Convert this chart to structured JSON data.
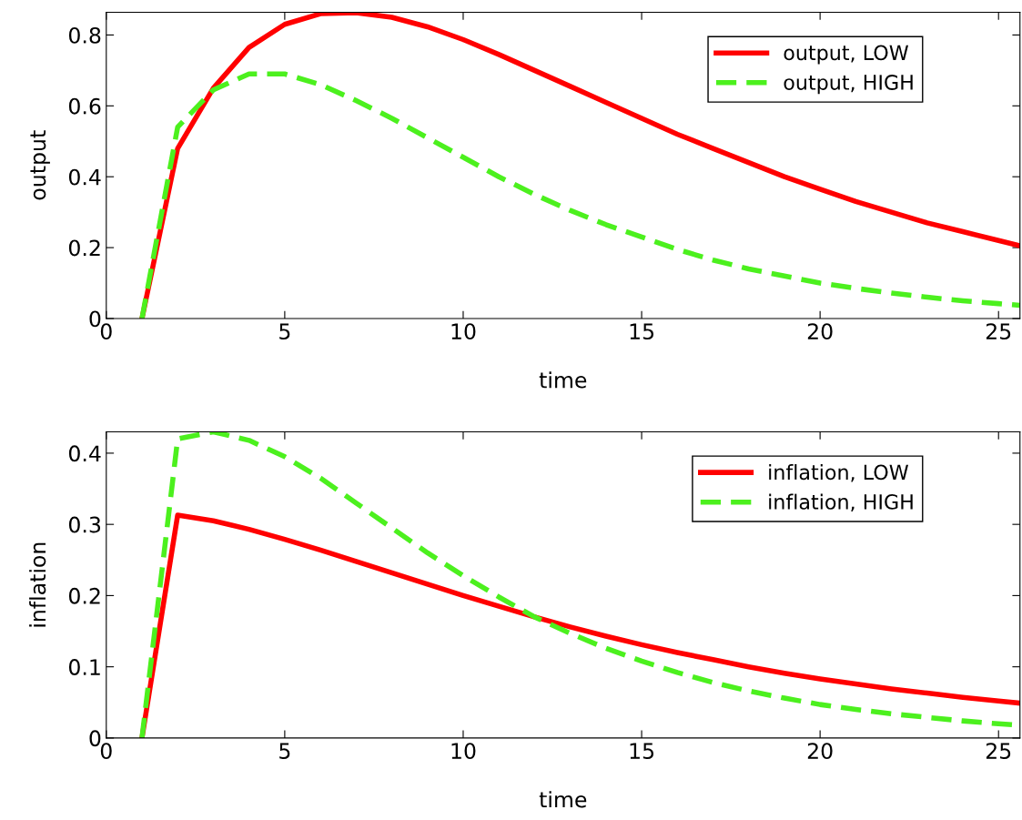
{
  "chart_data": [
    {
      "type": "line",
      "xlabel": "time",
      "ylabel": "output",
      "x": [
        1,
        2,
        3,
        4,
        5,
        6,
        7,
        8,
        9,
        10,
        11,
        12,
        13,
        14,
        15,
        16,
        17,
        18,
        19,
        20,
        21,
        22,
        23,
        24,
        25,
        25.6
      ],
      "xlim": [
        0,
        25.6
      ],
      "ylim": [
        0,
        0.864
      ],
      "xticks": [
        0,
        5,
        10,
        15,
        20,
        25
      ],
      "yticks": [
        0,
        0.2,
        0.4,
        0.6,
        0.8
      ],
      "grid": false,
      "legend": "top right",
      "series": [
        {
          "name": "output, LOW",
          "color": "#ff0000",
          "line_style": "solid",
          "values": [
            0,
            0.48,
            0.65,
            0.765,
            0.83,
            0.86,
            0.863,
            0.85,
            0.823,
            0.787,
            0.745,
            0.7,
            0.655,
            0.61,
            0.565,
            0.52,
            0.48,
            0.44,
            0.4,
            0.365,
            0.33,
            0.3,
            0.27,
            0.245,
            0.22,
            0.205
          ]
        },
        {
          "name": "output, HIGH",
          "color": "#4cf01e",
          "line_style": "dashed",
          "values": [
            0,
            0.54,
            0.645,
            0.69,
            0.69,
            0.66,
            0.615,
            0.565,
            0.51,
            0.455,
            0.4,
            0.35,
            0.305,
            0.265,
            0.23,
            0.195,
            0.165,
            0.14,
            0.12,
            0.1,
            0.085,
            0.072,
            0.06,
            0.05,
            0.042,
            0.037
          ]
        }
      ]
    },
    {
      "type": "line",
      "xlabel": "time",
      "ylabel": "inflation",
      "x": [
        1,
        2,
        3,
        4,
        5,
        6,
        7,
        8,
        9,
        10,
        11,
        12,
        13,
        14,
        15,
        16,
        17,
        18,
        19,
        20,
        21,
        22,
        23,
        24,
        25,
        25.6
      ],
      "xlim": [
        0,
        25.6
      ],
      "ylim": [
        0,
        0.43
      ],
      "xticks": [
        0,
        5,
        10,
        15,
        20,
        25
      ],
      "yticks": [
        0,
        0.1,
        0.2,
        0.3,
        0.4
      ],
      "grid": false,
      "legend": "top right",
      "series": [
        {
          "name": "inflation, LOW",
          "color": "#ff0000",
          "line_style": "solid",
          "values": [
            0,
            0.313,
            0.305,
            0.293,
            0.279,
            0.264,
            0.248,
            0.232,
            0.216,
            0.2,
            0.185,
            0.17,
            0.156,
            0.143,
            0.131,
            0.12,
            0.11,
            0.1,
            0.091,
            0.083,
            0.076,
            0.069,
            0.063,
            0.057,
            0.052,
            0.049
          ]
        },
        {
          "name": "inflation, HIGH",
          "color": "#4cf01e",
          "line_style": "dashed",
          "values": [
            0,
            0.42,
            0.43,
            0.418,
            0.395,
            0.365,
            0.33,
            0.295,
            0.26,
            0.228,
            0.198,
            0.17,
            0.147,
            0.126,
            0.108,
            0.092,
            0.078,
            0.066,
            0.056,
            0.047,
            0.04,
            0.034,
            0.029,
            0.024,
            0.02,
            0.018
          ]
        }
      ]
    }
  ]
}
